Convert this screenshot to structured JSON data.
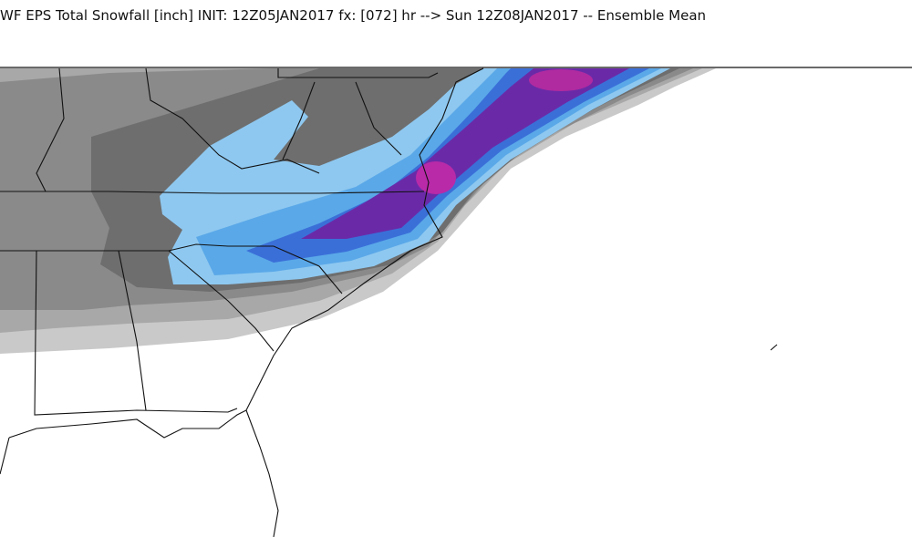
{
  "header": {
    "title": "WF EPS Total Snowfall [inch] INIT: 12Z05JAN2017 fx: [072] hr --> Sun 12Z08JAN2017 -- Ensemble Mean"
  }
}
